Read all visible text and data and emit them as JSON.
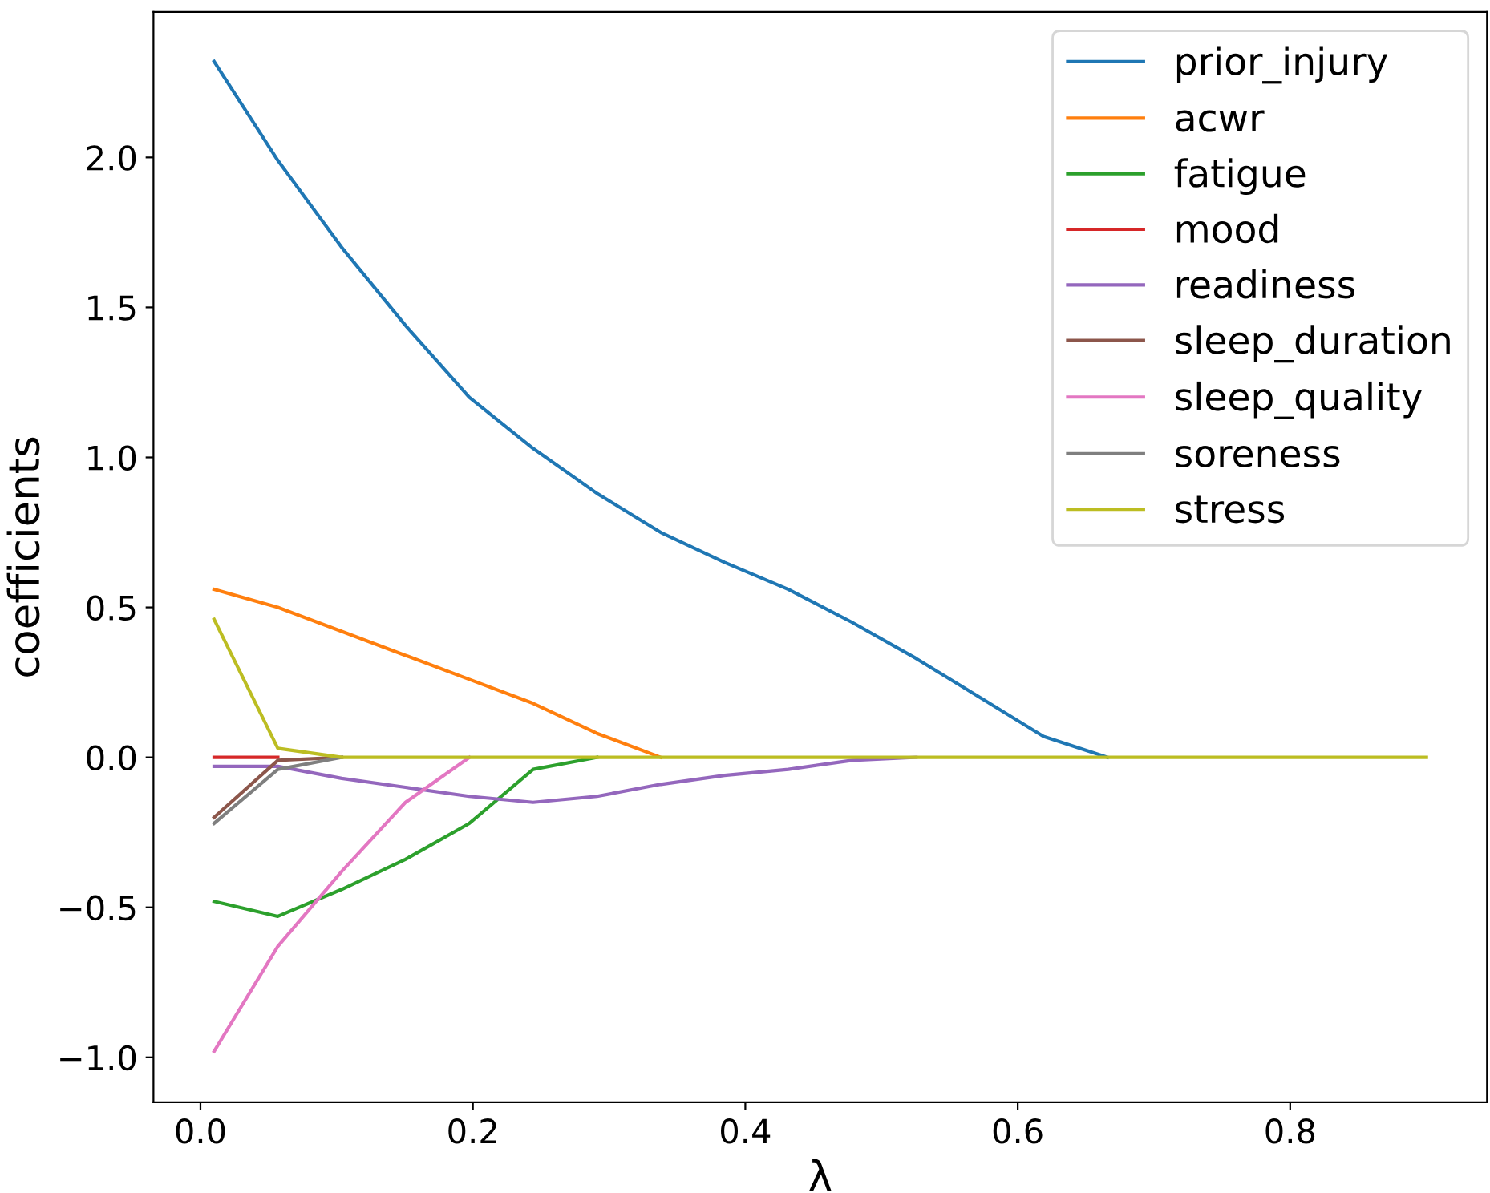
{
  "chart_data": {
    "type": "line",
    "xlabel": "λ",
    "ylabel": "coefficients",
    "x": [
      0.01,
      0.0568,
      0.1037,
      0.1505,
      0.1974,
      0.2442,
      0.2911,
      0.3379,
      0.3847,
      0.4316,
      0.4784,
      0.5253,
      0.5721,
      0.6189,
      0.6658,
      0.7126,
      0.7595,
      0.8063,
      0.8532,
      0.9
    ],
    "series": [
      {
        "name": "prior_injury",
        "color": "#1f77b4",
        "values": [
          2.32,
          1.99,
          1.7,
          1.44,
          1.2,
          1.03,
          0.88,
          0.75,
          0.65,
          0.56,
          0.45,
          0.33,
          0.2,
          0.07,
          0,
          null,
          null,
          null,
          null,
          null
        ]
      },
      {
        "name": "acwr",
        "color": "#ff7f0e",
        "values": [
          0.56,
          0.5,
          0.42,
          0.34,
          0.26,
          0.18,
          0.08,
          0,
          null,
          null,
          null,
          null,
          null,
          null,
          null,
          null,
          null,
          null,
          null,
          null
        ]
      },
      {
        "name": "fatigue",
        "color": "#2ca02c",
        "values": [
          -0.48,
          -0.53,
          -0.44,
          -0.34,
          -0.22,
          -0.04,
          0,
          null,
          null,
          null,
          null,
          null,
          null,
          null,
          null,
          null,
          null,
          null,
          null,
          null
        ]
      },
      {
        "name": "mood",
        "color": "#d62728",
        "values": [
          0,
          0,
          null,
          null,
          null,
          null,
          null,
          null,
          null,
          null,
          null,
          null,
          null,
          null,
          null,
          null,
          null,
          null,
          null,
          null
        ]
      },
      {
        "name": "readiness",
        "color": "#9467bd",
        "values": [
          -0.03,
          -0.03,
          -0.07,
          -0.1,
          -0.13,
          -0.15,
          -0.13,
          -0.09,
          -0.06,
          -0.04,
          -0.01,
          0,
          null,
          null,
          null,
          null,
          null,
          null,
          null,
          null
        ]
      },
      {
        "name": "sleep_duration",
        "color": "#8c564b",
        "values": [
          -0.2,
          -0.01,
          0,
          null,
          null,
          null,
          null,
          null,
          null,
          null,
          null,
          null,
          null,
          null,
          null,
          null,
          null,
          null,
          null,
          null
        ]
      },
      {
        "name": "sleep_quality",
        "color": "#e377c2",
        "values": [
          -0.98,
          -0.63,
          -0.38,
          -0.15,
          0,
          null,
          null,
          null,
          null,
          null,
          null,
          null,
          null,
          null,
          null,
          null,
          null,
          null,
          null,
          null
        ]
      },
      {
        "name": "soreness",
        "color": "#7f7f7f",
        "values": [
          -0.22,
          -0.04,
          0,
          null,
          null,
          null,
          null,
          null,
          null,
          null,
          null,
          null,
          null,
          null,
          null,
          null,
          null,
          null,
          null,
          null
        ]
      },
      {
        "name": "stress",
        "color": "#bcbd22",
        "values": [
          0.46,
          0.03,
          0,
          0,
          0,
          0,
          0,
          0,
          0,
          0,
          0,
          0,
          0,
          0,
          0,
          0,
          0,
          0,
          0,
          0
        ]
      }
    ],
    "xlim": [
      -0.0345,
      0.9445
    ],
    "xticks": [
      {
        "value": 0,
        "label": "0.0"
      },
      {
        "value": 0.2,
        "label": "0.2"
      },
      {
        "value": 0.4,
        "label": "0.4"
      },
      {
        "value": 0.6,
        "label": "0.6"
      },
      {
        "value": 0.8,
        "label": "0.8"
      }
    ],
    "ylim": [
      -1.15,
      2.485
    ],
    "yticks": [
      {
        "value": -1,
        "label": "−1.0"
      },
      {
        "value": -0.5,
        "label": "−0.5"
      },
      {
        "value": 0,
        "label": "0.0"
      },
      {
        "value": 0.5,
        "label": "0.5"
      },
      {
        "value": 1,
        "label": "1.0"
      },
      {
        "value": 1.5,
        "label": "1.5"
      },
      {
        "value": 2,
        "label": "2.0"
      }
    ],
    "legend": "top right",
    "grid": false
  }
}
